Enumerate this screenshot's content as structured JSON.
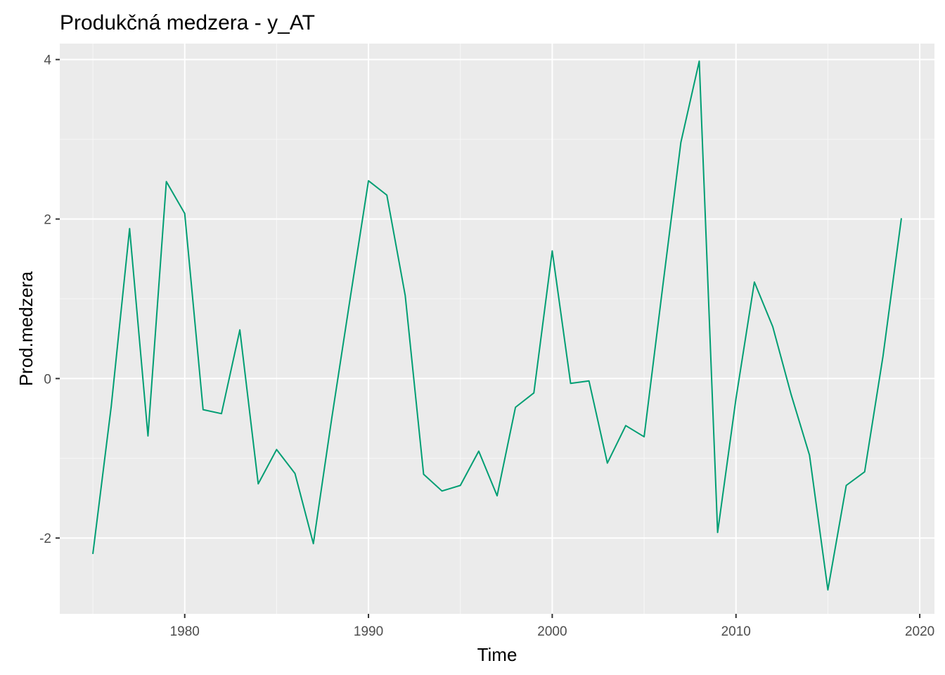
{
  "chart_data": {
    "type": "line",
    "title": "Produkčná medzera - y_AT",
    "xlabel": "Time",
    "ylabel": "Prod.medzera",
    "xlim": [
      1973.2,
      2020.8
    ],
    "ylim": [
      -2.95,
      4.2
    ],
    "x_ticks": [
      1980,
      1990,
      2000,
      2010,
      2020
    ],
    "y_ticks": [
      -2,
      0,
      2,
      4
    ],
    "grid": true,
    "legend": "none",
    "colors": {
      "line": "#009E73",
      "panel": "#EBEBEB",
      "grid_major": "#FFFFFF",
      "grid_minor": "#F7F7F7",
      "tick": "#333333"
    },
    "series": [
      {
        "x": [
          1975,
          1976,
          1977,
          1978,
          1979,
          1980,
          1981,
          1982,
          1983,
          1984,
          1985,
          1986,
          1987,
          1988,
          1989,
          1990,
          1991,
          1992,
          1993,
          1994,
          1995,
          1996,
          1997,
          1998,
          1999,
          2000,
          2001,
          2002,
          2003,
          2004,
          2005,
          2006,
          2007,
          2008,
          2009,
          2010,
          2011,
          2012,
          2013,
          2014,
          2015,
          2016,
          2017,
          2018,
          2019
        ],
        "y": [
          -2.2,
          -0.35,
          1.88,
          -0.72,
          2.47,
          2.07,
          -0.39,
          -0.44,
          0.61,
          -1.32,
          -0.89,
          -1.19,
          -2.07,
          -0.5,
          1.0,
          2.48,
          2.3,
          1.04,
          -1.2,
          -1.41,
          -1.34,
          -0.91,
          -1.47,
          -0.36,
          -0.18,
          1.6,
          -0.06,
          -0.03,
          -1.06,
          -0.59,
          -0.73,
          1.13,
          2.96,
          3.98,
          -1.93,
          -0.25,
          1.21,
          0.65,
          -0.2,
          -0.96,
          -2.65,
          -1.34,
          -1.17,
          0.28,
          2.01
        ]
      }
    ]
  }
}
